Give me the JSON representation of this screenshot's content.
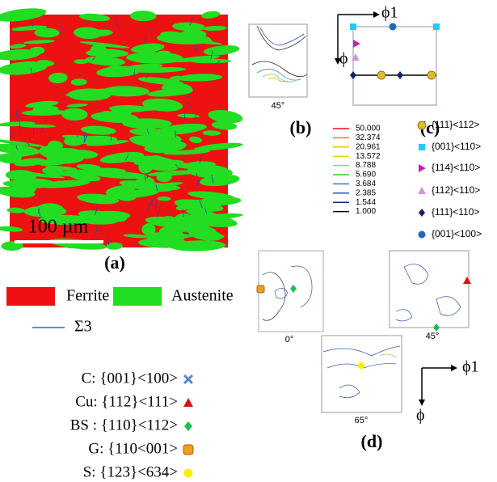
{
  "panel_a": {
    "label": "(a)",
    "scale_bar": "100 µm",
    "legend": [
      "Ferrite",
      "Austenite",
      "Σ3"
    ]
  },
  "panel_b": {
    "label": "(b)",
    "angle": "45°",
    "levels": [
      "50.000",
      "32.374",
      "20.961",
      "13.572",
      "8.788",
      "5.690",
      "3.684",
      "2.385",
      "1.544",
      "1.000"
    ]
  },
  "panel_c": {
    "label": "(c)",
    "axis_x": "ϕ1",
    "axis_y": "ϕ",
    "legend": [
      "{111}<112>",
      "{001}<110>",
      "{114}<110>",
      "{112}<110>",
      "{111}<110>",
      "{001}<100>"
    ]
  },
  "panel_d": {
    "label": "(d)",
    "angles": [
      "0°",
      "45°",
      "65°"
    ],
    "axis_x": "ϕ1",
    "axis_y": "ϕ",
    "legend": [
      "C: {001}<100>",
      "Cu: {112}<111>",
      "BS : {110}<112>",
      "G:  {110<001>",
      "S: {123}<634>"
    ]
  }
}
